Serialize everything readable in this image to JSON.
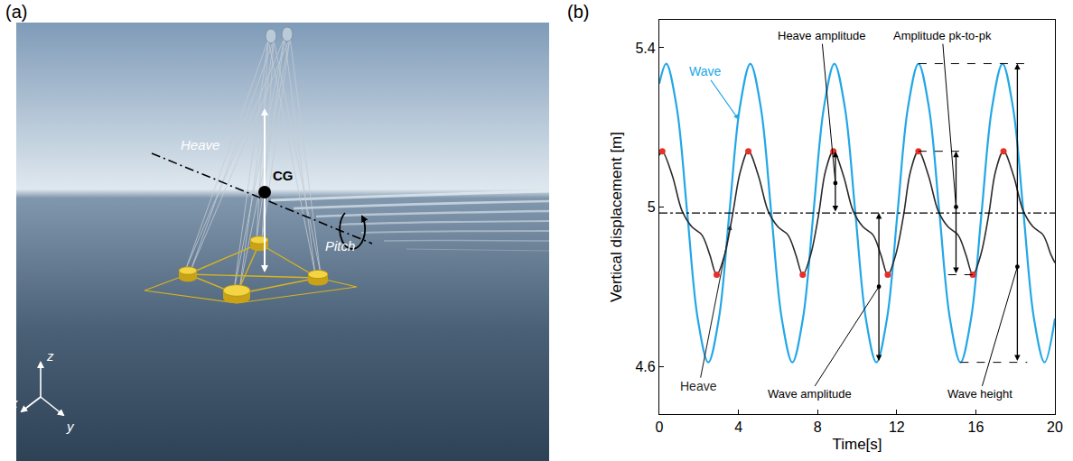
{
  "panel_labels": [
    "(a)",
    "(b)"
  ],
  "diagram": {
    "labels": {
      "heave": "Heave",
      "cg": "CG",
      "pitch": "Pitch"
    },
    "axes": [
      "x",
      "y",
      "z"
    ]
  },
  "chart_data": {
    "type": "line",
    "x_label": "Time[s]",
    "y_label": "Vertical displacement [m]",
    "xlim": [
      0,
      20
    ],
    "xticks": [
      0,
      4,
      8,
      12,
      16,
      20
    ],
    "ylim": [
      4.48,
      5.47
    ],
    "yticks": [
      4.6,
      5,
      5.4
    ],
    "grid": false,
    "series": [
      {
        "name": "Wave",
        "color": "#22a7e6",
        "x": [
          0,
          0.35,
          0.88,
          1.41,
          1.94,
          2.475,
          3.01,
          3.54,
          4.07,
          4.6,
          5.13,
          5.66,
          6.19,
          6.725,
          7.26,
          7.79,
          8.32,
          8.85,
          9.38,
          9.91,
          10.44,
          10.975,
          11.51,
          12.04,
          12.57,
          13.1,
          13.63,
          14.16,
          14.69,
          15.225,
          15.76,
          16.29,
          16.82,
          17.35,
          17.88,
          18.41,
          18.94,
          19.475,
          20
        ],
        "values": [
          5.31,
          5.36,
          5.25,
          4.985,
          4.72,
          4.61,
          4.72,
          4.985,
          5.25,
          5.36,
          5.25,
          4.985,
          4.72,
          4.61,
          4.72,
          4.985,
          5.25,
          5.36,
          5.25,
          4.985,
          4.72,
          4.61,
          4.72,
          4.985,
          5.25,
          5.36,
          5.25,
          4.985,
          4.72,
          4.61,
          4.72,
          4.985,
          5.25,
          5.36,
          5.25,
          4.985,
          4.72,
          4.61,
          4.72
        ],
        "callout": {
          "x": 4.0,
          "y": 5.22,
          "text_x": 2.3,
          "text_y": 5.34
        }
      },
      {
        "name": "Heave",
        "color": "#2a2a2a",
        "x": [
          0,
          0.15,
          0.65,
          1.15,
          1.65,
          2.15,
          2.55,
          2.9,
          3.3,
          3.7,
          4.1,
          4.5,
          5.0,
          5.5,
          6.0,
          6.5,
          6.9,
          7.25,
          7.65,
          8.05,
          8.4,
          8.8,
          9.3,
          9.8,
          10.3,
          10.8,
          11.2,
          11.55,
          11.95,
          12.35,
          12.7,
          13.1,
          13.6,
          14.1,
          14.6,
          15.1,
          15.5,
          15.85,
          16.25,
          16.65,
          17.0,
          17.4,
          17.9,
          18.4,
          18.9,
          19.4,
          19.8,
          20
        ],
        "values": [
          5.13,
          5.14,
          5.08,
          4.99,
          4.95,
          4.93,
          4.88,
          4.83,
          4.88,
          4.98,
          5.09,
          5.14,
          5.08,
          4.99,
          4.95,
          4.93,
          4.88,
          4.83,
          4.88,
          4.98,
          5.09,
          5.14,
          5.08,
          4.99,
          4.95,
          4.93,
          4.88,
          4.83,
          4.88,
          4.98,
          5.09,
          5.14,
          5.08,
          4.99,
          4.95,
          4.93,
          4.88,
          4.83,
          4.88,
          4.98,
          5.09,
          5.14,
          5.08,
          4.99,
          4.95,
          4.93,
          4.88,
          4.86
        ],
        "callout": {
          "x": 3.6,
          "y": 4.955,
          "text_x": 2.0,
          "text_y": 4.55
        }
      },
      {
        "type": "scatter",
        "marker": "circle",
        "color": "#e8302a",
        "x": [
          0.15,
          2.9,
          4.5,
          7.25,
          8.8,
          11.55,
          13.1,
          15.85,
          17.4
        ],
        "values": [
          5.14,
          4.83,
          5.14,
          4.83,
          5.14,
          4.83,
          5.14,
          4.83,
          5.14
        ]
      }
    ],
    "reference_line": {
      "value": 4.985,
      "line_style": "dashdot"
    },
    "dimensions": [
      {
        "text": "Heave amplitude",
        "x": 8.9,
        "y": [
          4.985,
          5.14
        ],
        "text_x": 8.2,
        "text_y": 5.43,
        "pointer_y": 5.06
      },
      {
        "text": "Wave amplitude",
        "x": 11.1,
        "y": [
          4.61,
          4.985
        ],
        "text_x": 7.6,
        "text_y": 4.53,
        "pointer_y": 4.8
      },
      {
        "text": "Amplitude pk-to-pk",
        "x": 15.0,
        "y": [
          4.83,
          5.14
        ],
        "text_x": 14.3,
        "text_y": 5.43,
        "pointer_y": 5.0,
        "guides": [
          [
            14.6,
            15.85
          ],
          [
            13.1,
            15.4
          ]
        ]
      },
      {
        "text": "Wave height",
        "x": 18.1,
        "y": [
          4.61,
          5.36
        ],
        "text_x": 16.2,
        "text_y": 4.53,
        "pointer_y": 4.85,
        "guides": [
          [
            15.225,
            18.6
          ],
          [
            13.1,
            18.6
          ]
        ]
      }
    ]
  }
}
